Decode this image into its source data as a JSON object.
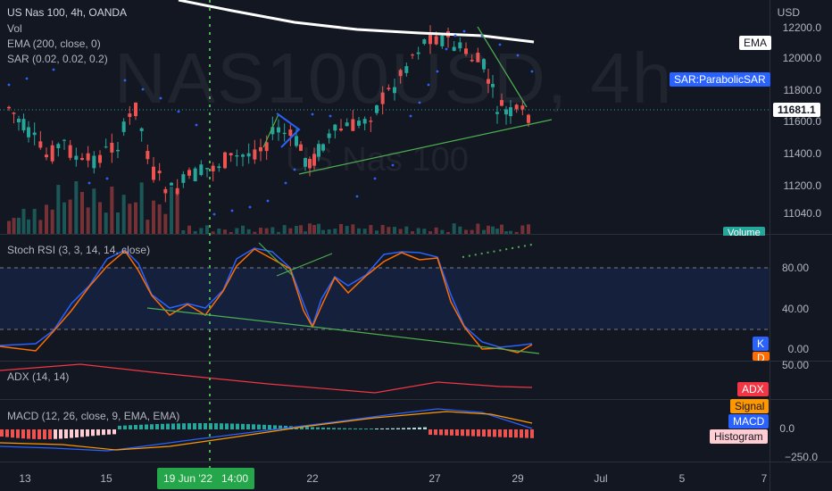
{
  "main": {
    "symbol_line": "US Nas 100, 4h, OANDA",
    "vol_label": "Vol",
    "ema_label": "EMA (200, close, 0)",
    "sar_label": "SAR (0.02, 0.02, 0.2)",
    "watermark_symbol": "NAS100USD, 4h",
    "watermark_name": "US Nas 100",
    "currency": "USD",
    "price_ticks": [
      "12200.0",
      "12000.0",
      "11800.0",
      "11600.0",
      "11400.0",
      "11200.0",
      "11040.0"
    ],
    "ema_tag": "EMA",
    "sar_tag": "SAR:ParabolicSAR",
    "last_price": "11681.1",
    "volume_tag": "Volume"
  },
  "stoch": {
    "label": "Stoch RSI (3, 3, 14, 14, close)",
    "ticks": [
      "80.00",
      "40.00",
      "0.00"
    ],
    "k_tag": "K",
    "d_tag": "D"
  },
  "adx": {
    "label": "ADX (14, 14)",
    "tick": "50.00",
    "tag": "ADX"
  },
  "macd": {
    "label": "MACD (12, 26, close, 9, EMA, EMA)",
    "ticks": [
      "0.0",
      "−250.0"
    ],
    "signal_tag": "Signal",
    "macd_tag": "MACD",
    "histogram_tag": "Histogram"
  },
  "time_axis": {
    "labels": [
      "13",
      "15",
      "22",
      "27",
      "29",
      "Jul",
      "5",
      "7"
    ],
    "crosshair_date": "19 Jun '22",
    "crosshair_time": "14:00"
  },
  "colors": {
    "background": "#131722",
    "up": "#26a69a",
    "down": "#ef5350",
    "ema": "#ffffff",
    "sar": "#2962ff",
    "stoch_k": "#2962ff",
    "stoch_d": "#ff6d00",
    "adx": "#f23645",
    "crosshair": "#4caf50"
  },
  "icons": [
    "crosshair-vertical-line"
  ]
}
